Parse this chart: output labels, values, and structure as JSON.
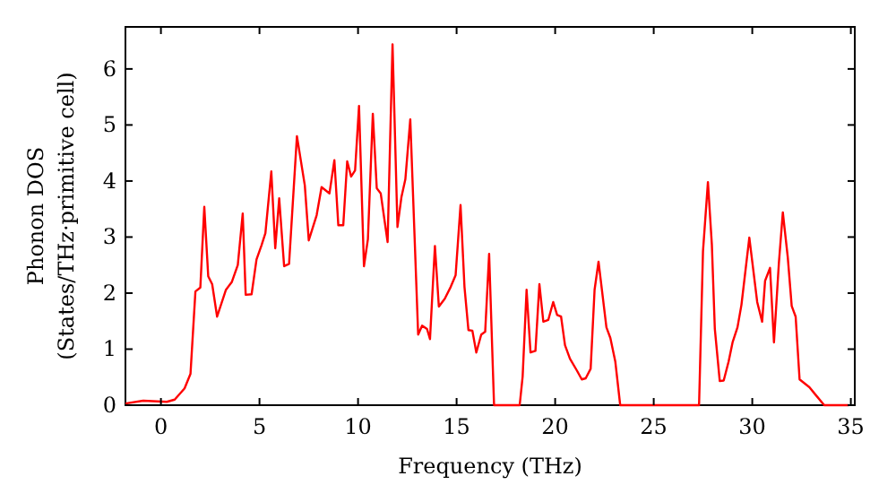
{
  "chart_data": {
    "type": "line",
    "xlabel": "Frequency (THz)",
    "ylabel": "Phonon DOS\n(States/THz·primitive cell)",
    "xlim": [
      -1.8,
      35.2
    ],
    "ylim": [
      0,
      6.75
    ],
    "xticks": [
      0,
      5,
      10,
      15,
      20,
      25,
      30,
      35
    ],
    "yticks": [
      0,
      1,
      2,
      3,
      4,
      5,
      6
    ],
    "grid": false,
    "marker": "none",
    "line_style": "solid",
    "series": [
      {
        "color": "#ff0000",
        "x": [
          -1.8,
          -0.9,
          0.3,
          0.7,
          1.2,
          1.5,
          1.75,
          2.0,
          2.2,
          2.4,
          2.6,
          2.85,
          3.3,
          3.6,
          3.9,
          4.15,
          4.3,
          4.6,
          4.85,
          5.1,
          5.3,
          5.6,
          5.8,
          6.0,
          6.25,
          6.5,
          6.9,
          7.3,
          7.5,
          7.9,
          8.15,
          8.55,
          8.8,
          9.0,
          9.25,
          9.45,
          9.65,
          9.85,
          10.05,
          10.3,
          10.5,
          10.75,
          10.95,
          11.15,
          11.5,
          11.75,
          12.0,
          12.2,
          12.4,
          12.65,
          13.05,
          13.25,
          13.5,
          13.65,
          13.9,
          14.1,
          14.4,
          14.7,
          14.95,
          15.2,
          15.4,
          15.6,
          15.8,
          16.0,
          16.25,
          16.45,
          16.65,
          16.9,
          18.2,
          18.35,
          18.55,
          18.75,
          19.0,
          19.2,
          19.4,
          19.65,
          19.9,
          20.1,
          20.3,
          20.5,
          20.75,
          21.1,
          21.35,
          21.55,
          21.8,
          22.0,
          22.2,
          22.6,
          22.8,
          23.05,
          23.3,
          27.3,
          27.5,
          27.75,
          27.95,
          28.1,
          28.35,
          28.55,
          28.8,
          29.0,
          29.25,
          29.45,
          29.85,
          30.25,
          30.5,
          30.65,
          30.9,
          31.1,
          31.35,
          31.55,
          31.8,
          32.0,
          32.2,
          32.4,
          32.9,
          33.2,
          33.65,
          34.9
        ],
        "values": [
          0.03,
          0.08,
          0.06,
          0.1,
          0.3,
          0.56,
          2.03,
          2.1,
          3.54,
          2.3,
          2.16,
          1.58,
          2.06,
          2.2,
          2.5,
          3.42,
          1.97,
          1.98,
          2.6,
          2.85,
          3.07,
          4.17,
          2.8,
          3.69,
          2.48,
          2.52,
          4.8,
          3.92,
          2.94,
          3.39,
          3.89,
          3.78,
          4.37,
          3.21,
          3.21,
          4.35,
          4.08,
          4.19,
          5.34,
          2.48,
          2.96,
          5.2,
          3.87,
          3.78,
          2.91,
          6.44,
          3.18,
          3.71,
          4.03,
          5.1,
          1.26,
          1.42,
          1.36,
          1.18,
          2.84,
          1.76,
          1.9,
          2.11,
          2.32,
          3.57,
          2.11,
          1.34,
          1.33,
          0.94,
          1.26,
          1.31,
          2.7,
          0,
          0,
          0.51,
          2.06,
          0.94,
          0.97,
          2.16,
          1.49,
          1.52,
          1.84,
          1.61,
          1.58,
          1.07,
          0.83,
          0.62,
          0.46,
          0.48,
          0.65,
          2.06,
          2.56,
          1.39,
          1.2,
          0.78,
          0,
          0,
          2.75,
          3.98,
          2.86,
          1.36,
          0.43,
          0.44,
          0.78,
          1.12,
          1.39,
          1.79,
          2.99,
          1.84,
          1.49,
          2.22,
          2.45,
          1.12,
          2.54,
          3.44,
          2.64,
          1.77,
          1.58,
          0.46,
          0.32,
          0.19,
          0,
          0
        ]
      }
    ]
  }
}
